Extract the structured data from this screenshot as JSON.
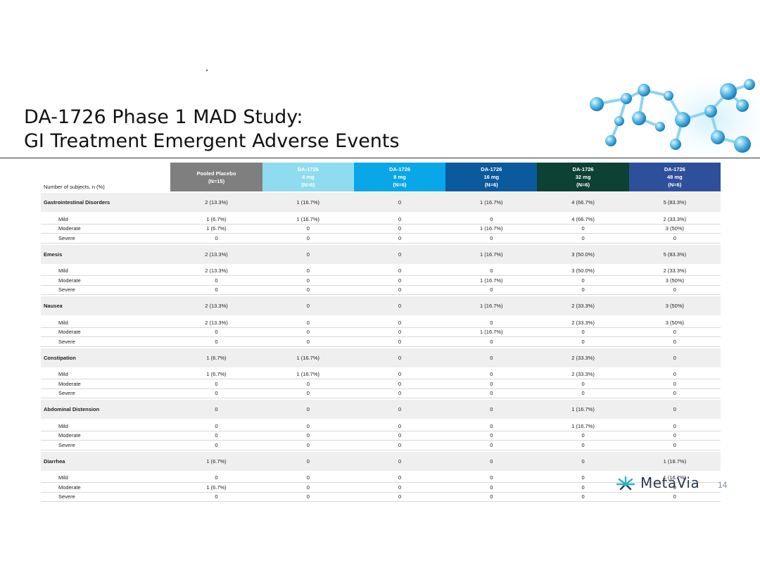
{
  "title": {
    "line1": "DA-1726 Phase 1 MAD Study:",
    "line2": "GI Treatment Emergent Adverse Events"
  },
  "table": {
    "row_header_label": "Number of subjects, n (%)",
    "columns": [
      {
        "l1": "Pooled Placebo",
        "l2": "(N=15)",
        "l3": "",
        "color": "#7f7f7f"
      },
      {
        "l1": "DA-1726",
        "l2": "4 mg",
        "l3": "(N=6)",
        "color": "#8fdcf0"
      },
      {
        "l1": "DA-1726",
        "l2": "8 mg",
        "l3": "(N=6)",
        "color": "#0aa7e8"
      },
      {
        "l1": "DA-1726",
        "l2": "16 mg",
        "l3": "(N=6)",
        "color": "#0a5a9c"
      },
      {
        "l1": "DA-1726",
        "l2": "32 mg",
        "l3": "(N=6)",
        "color": "#0c4134"
      },
      {
        "l1": "DA-1726",
        "l2": "48 mg",
        "l3": "(N=6)",
        "color": "#2e4f9a"
      }
    ],
    "groups": [
      {
        "name": "Gastrointestinal Disorders",
        "values": [
          "2 (13.3%)",
          "1 (16.7%)",
          "0",
          "1 (16.7%)",
          "4 (66.7%)",
          "5 (83.3%)"
        ],
        "rows": [
          {
            "label": "Mild",
            "values": [
              "1 (6.7%)",
              "1 (16.7%)",
              "0",
              "0",
              "4 (66.7%)",
              "2 (33.3%)"
            ]
          },
          {
            "label": "Moderate",
            "values": [
              "1 (6.7%)",
              "0",
              "0",
              "1 (16.7%)",
              "0",
              "3 (50%)"
            ]
          },
          {
            "label": "Severe",
            "values": [
              "0",
              "0",
              "0",
              "0",
              "0",
              "0"
            ]
          }
        ]
      },
      {
        "name": "Emesis",
        "values": [
          "2 (13.3%)",
          "0",
          "0",
          "1 (16.7%)",
          "3 (50.0%)",
          "5 (83.3%)"
        ],
        "rows": [
          {
            "label": "Mild",
            "values": [
              "2 (13.3%)",
              "0",
              "0",
              "0",
              "3 (50.0%)",
              "2 (33.3%)"
            ]
          },
          {
            "label": "Moderate",
            "values": [
              "0",
              "0",
              "0",
              "1 (16.7%)",
              "0",
              "3 (50%)"
            ]
          },
          {
            "label": "Severe",
            "values": [
              "0",
              "0",
              "0",
              "0",
              "0",
              "0"
            ]
          }
        ]
      },
      {
        "name": "Nausea",
        "values": [
          "2 (13.3%)",
          "0",
          "0",
          "1 (16.7%)",
          "2 (33.3%)",
          "3 (50%)"
        ],
        "rows": [
          {
            "label": "Mild",
            "values": [
              "2 (13.3%)",
              "0",
              "0",
              "0",
              "2 (33.3%)",
              "3 (50%)"
            ]
          },
          {
            "label": "Moderate",
            "values": [
              "0",
              "0",
              "0",
              "1 (16.7%)",
              "0",
              "0"
            ]
          },
          {
            "label": "Severe",
            "values": [
              "0",
              "0",
              "0",
              "0",
              "0",
              "0"
            ]
          }
        ]
      },
      {
        "name": "Constipation",
        "values": [
          "1 (6.7%)",
          "1 (16.7%)",
          "0",
          "0",
          "2 (33.3%)",
          "0"
        ],
        "rows": [
          {
            "label": "Mild",
            "values": [
              "1 (6.7%)",
              "1 (16.7%)",
              "0",
              "0",
              "2 (33.3%)",
              "0"
            ]
          },
          {
            "label": "Moderate",
            "values": [
              "0",
              "0",
              "0",
              "0",
              "0",
              "0"
            ]
          },
          {
            "label": "Severe",
            "values": [
              "0",
              "0",
              "0",
              "0",
              "0",
              "0"
            ]
          }
        ]
      },
      {
        "name": "Abdominal Distension",
        "values": [
          "0",
          "0",
          "0",
          "0",
          "1 (16.7%)",
          "0"
        ],
        "rows": [
          {
            "label": "Mild",
            "values": [
              "0",
              "0",
              "0",
              "0",
              "1 (16.7%)",
              "0"
            ]
          },
          {
            "label": "Moderate",
            "values": [
              "0",
              "0",
              "0",
              "0",
              "0",
              "0"
            ]
          },
          {
            "label": "Severe",
            "values": [
              "0",
              "0",
              "0",
              "0",
              "0",
              "0"
            ]
          }
        ]
      },
      {
        "name": "Diarrhea",
        "values": [
          "1 (6.7%)",
          "0",
          "0",
          "0",
          "0",
          "1 (16.7%)"
        ],
        "rows": [
          {
            "label": "Mild",
            "values": [
              "0",
              "0",
              "0",
              "0",
              "0",
              "1 (16.7%)"
            ]
          },
          {
            "label": "Moderate",
            "values": [
              "1 (6.7%)",
              "0",
              "0",
              "0",
              "0",
              "0"
            ]
          },
          {
            "label": "Severe",
            "values": [
              "0",
              "0",
              "0",
              "0",
              "0",
              "0"
            ]
          }
        ]
      }
    ]
  },
  "logo": {
    "text": "MetaVia",
    "icon": "starburst-logo-icon",
    "accent": "#2bb3c0"
  },
  "page_number": "14",
  "decoration": {
    "icon": "molecule-illustration-icon",
    "color": "#4fb3e0"
  }
}
